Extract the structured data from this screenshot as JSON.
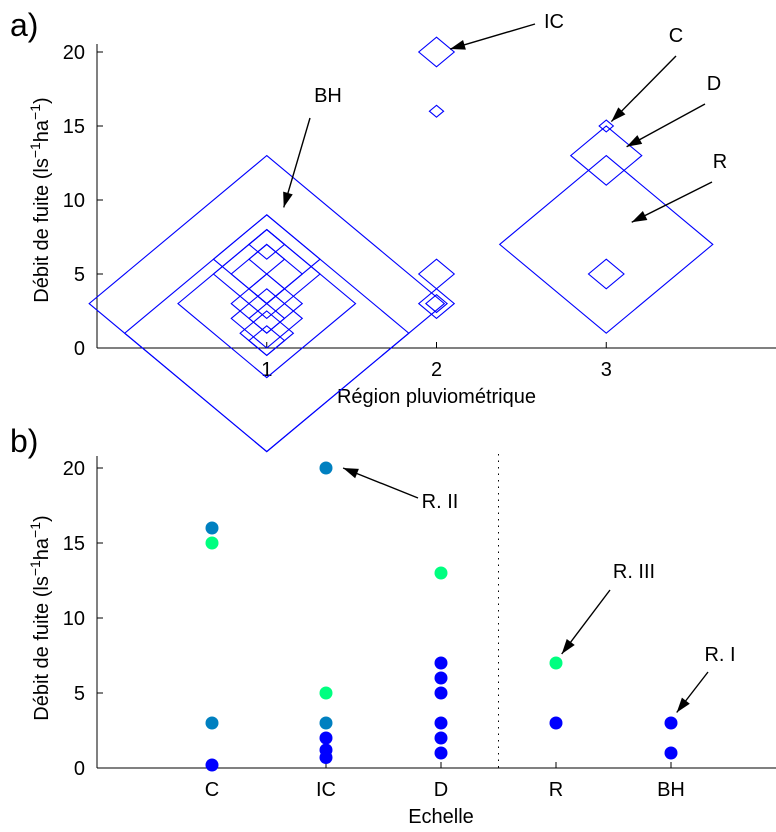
{
  "chart_data": [
    {
      "panel_label": "a)",
      "type": "scatter",
      "xlabel": "Région pluviométrique",
      "ylabel": "Débit de fuite (ls⁻¹ha⁻¹)",
      "xticks": [
        1,
        2,
        3
      ],
      "yticks": [
        0,
        5,
        10,
        15,
        20
      ],
      "xlim": [
        0,
        4
      ],
      "ylim": [
        0,
        20
      ],
      "marker": "diamond",
      "marker_color": "#0000ff",
      "points": [
        {
          "x": 1,
          "y": 3,
          "size": 10
        },
        {
          "x": 1,
          "y": 1,
          "size": 8
        },
        {
          "x": 1,
          "y": 3,
          "size": 5
        },
        {
          "x": 1,
          "y": 6,
          "size": 3
        },
        {
          "x": 1,
          "y": 5,
          "size": 3
        },
        {
          "x": 1,
          "y": 5,
          "size": 2
        },
        {
          "x": 1,
          "y": 3,
          "size": 2
        },
        {
          "x": 1,
          "y": 2,
          "size": 2
        },
        {
          "x": 1,
          "y": 1,
          "size": 1.5
        },
        {
          "x": 1,
          "y": 0.5,
          "size": 1
        },
        {
          "x": 1,
          "y": 7,
          "size": 1
        },
        {
          "x": 1,
          "y": 6,
          "size": 1
        },
        {
          "x": 1,
          "y": 4,
          "size": 1
        },
        {
          "x": 1,
          "y": 2,
          "size": 1
        },
        {
          "x": 2,
          "y": 20,
          "size": 1
        },
        {
          "x": 2,
          "y": 16,
          "size": 0.4
        },
        {
          "x": 2,
          "y": 5,
          "size": 1
        },
        {
          "x": 2,
          "y": 3,
          "size": 1
        },
        {
          "x": 2,
          "y": 3,
          "size": 0.6
        },
        {
          "x": 3,
          "y": 15,
          "size": 0.4
        },
        {
          "x": 3,
          "y": 13,
          "size": 2
        },
        {
          "x": 3,
          "y": 7,
          "size": 6
        },
        {
          "x": 3,
          "y": 5,
          "size": 1
        }
      ],
      "annotations": [
        {
          "text": "BH",
          "tip_x": 1.1,
          "tip_y": 9.5
        },
        {
          "text": "IC",
          "tip_x": 2.08,
          "tip_y": 20.2
        },
        {
          "text": "C",
          "tip_x": 3.03,
          "tip_y": 15.3
        },
        {
          "text": "D",
          "tip_x": 3.12,
          "tip_y": 13.6
        },
        {
          "text": "R",
          "tip_x": 3.15,
          "tip_y": 8.5
        }
      ]
    },
    {
      "panel_label": "b)",
      "type": "scatter",
      "xlabel": "Echelle",
      "ylabel": "Débit de fuite (ls⁻¹ha⁻¹)",
      "categories": [
        "C",
        "IC",
        "D",
        "R",
        "BH"
      ],
      "yticks": [
        0,
        5,
        10,
        15,
        20
      ],
      "ylim": [
        0,
        20
      ],
      "separator_after": "D",
      "region_colors": {
        "R. I": "#0000ff",
        "R. II": "#0080c0",
        "R. III": "#00ff80"
      },
      "points": [
        {
          "cat": "C",
          "y": 16,
          "region": "R. II"
        },
        {
          "cat": "C",
          "y": 15,
          "region": "R. III"
        },
        {
          "cat": "C",
          "y": 3,
          "region": "R. II"
        },
        {
          "cat": "C",
          "y": 0.2,
          "region": "R. I"
        },
        {
          "cat": "IC",
          "y": 20,
          "region": "R. II"
        },
        {
          "cat": "IC",
          "y": 5,
          "region": "R. III"
        },
        {
          "cat": "IC",
          "y": 3,
          "region": "R. II"
        },
        {
          "cat": "IC",
          "y": 2,
          "region": "R. I"
        },
        {
          "cat": "IC",
          "y": 1.2,
          "region": "R. I"
        },
        {
          "cat": "IC",
          "y": 0.7,
          "region": "R. I"
        },
        {
          "cat": "D",
          "y": 13,
          "region": "R. III"
        },
        {
          "cat": "D",
          "y": 7,
          "region": "R. I"
        },
        {
          "cat": "D",
          "y": 6,
          "region": "R. I"
        },
        {
          "cat": "D",
          "y": 5,
          "region": "R. I"
        },
        {
          "cat": "D",
          "y": 3,
          "region": "R. I"
        },
        {
          "cat": "D",
          "y": 2,
          "region": "R. I"
        },
        {
          "cat": "D",
          "y": 1,
          "region": "R. I"
        },
        {
          "cat": "R",
          "y": 7,
          "region": "R. III"
        },
        {
          "cat": "R",
          "y": 3,
          "region": "R. I"
        },
        {
          "cat": "BH",
          "y": 3,
          "region": "R. I"
        },
        {
          "cat": "BH",
          "y": 1,
          "region": "R. I"
        }
      ],
      "annotations": [
        {
          "text": "R. II",
          "tip_cat": "IC",
          "tip_dx": 0.15,
          "tip_y": 20
        },
        {
          "text": "R. III",
          "tip_cat": "R",
          "tip_dx": 0.05,
          "tip_y": 7.6
        },
        {
          "text": "R. I",
          "tip_cat": "BH",
          "tip_dx": 0.05,
          "tip_y": 3.7
        }
      ]
    }
  ]
}
